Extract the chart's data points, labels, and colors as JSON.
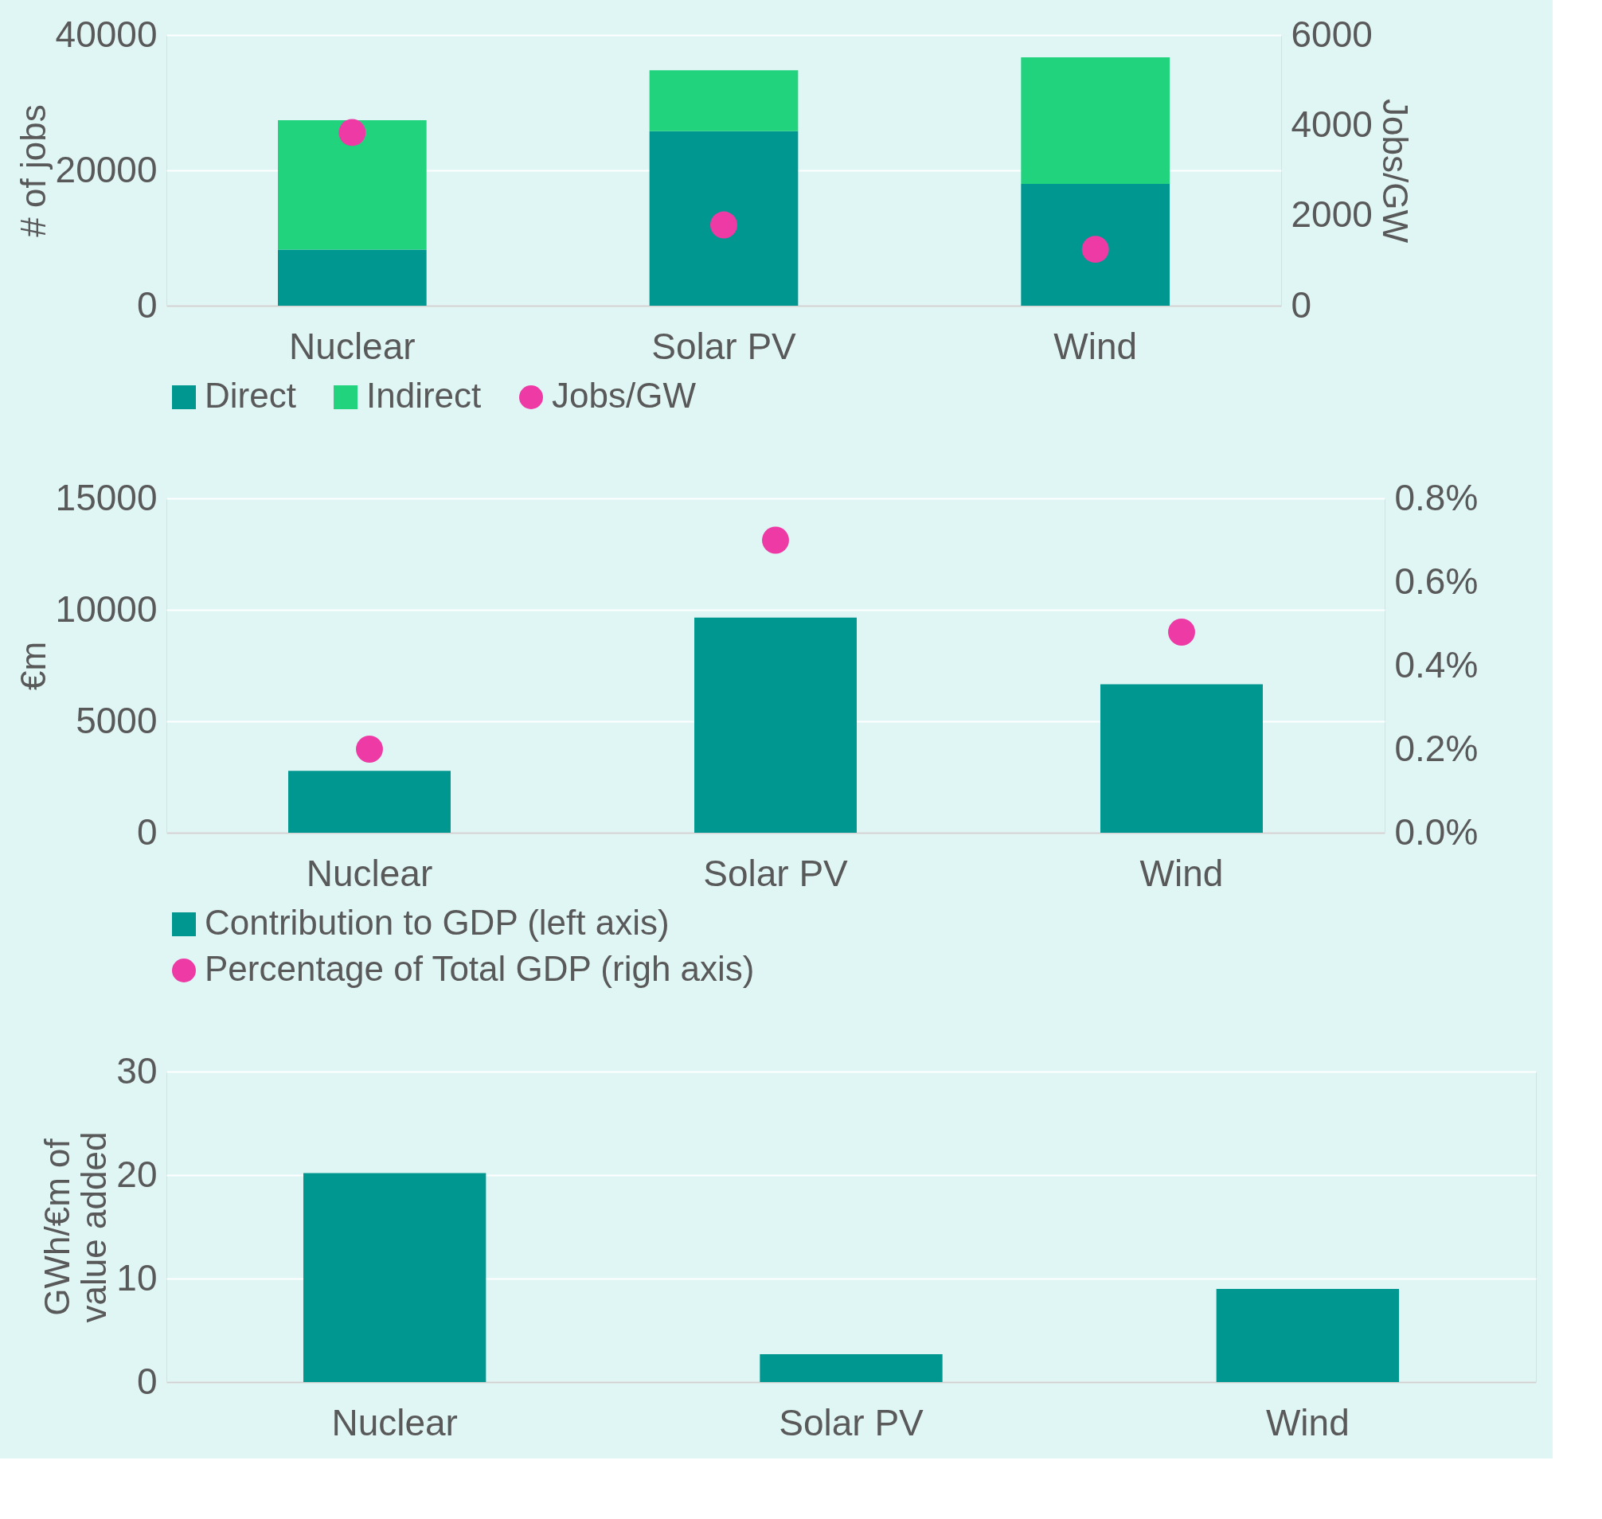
{
  "chart_data": [
    {
      "type": "bar",
      "stacked": true,
      "categories": [
        "Nuclear",
        "Solar PV",
        "Wind"
      ],
      "ylabel": "# of jobs",
      "y2label": "Jobs/GW",
      "ylim": [
        0,
        40000
      ],
      "yticks": [
        0,
        20000,
        40000
      ],
      "y2lim": [
        0,
        6000
      ],
      "y2ticks": [
        0,
        2000,
        4000,
        6000
      ],
      "grid": "y",
      "legend": "bottom",
      "series": [
        {
          "name": "Direct",
          "color": "#009790",
          "values": [
            8300,
            25800,
            18000
          ]
        },
        {
          "name": "Indirect",
          "color": "#22d37e",
          "values": [
            19100,
            9000,
            18700
          ]
        },
        {
          "name": "Jobs/GW",
          "type": "scatter",
          "axis": "y2",
          "color": "#ee3aa5",
          "marker": "circle",
          "values": [
            3840,
            1790,
            1250
          ]
        }
      ]
    },
    {
      "type": "bar",
      "categories": [
        "Nuclear",
        "Solar PV",
        "Wind"
      ],
      "ylabel": "€m",
      "ylim": [
        0,
        15000
      ],
      "yticks": [
        0,
        5000,
        10000,
        15000
      ],
      "y2lim": [
        0,
        0.8
      ],
      "y2ticks": [
        {
          "value": 0,
          "label": "0.0%"
        },
        {
          "value": 0.2,
          "label": "0.2%"
        },
        {
          "value": 0.4,
          "label": "0.4%"
        },
        {
          "value": 0.6,
          "label": "0.6%"
        },
        {
          "value": 0.8,
          "label": "0.8%"
        }
      ],
      "grid": "y",
      "legend": "bottom",
      "series": [
        {
          "name": "Contribution to GDP (left axis)",
          "color": "#009790",
          "values": [
            2780,
            9650,
            6660
          ]
        },
        {
          "name": "Percentage of Total GDP (righ axis)",
          "type": "scatter",
          "axis": "y2",
          "color": "#ee3aa5",
          "marker": "circle",
          "values": [
            0.2,
            0.7,
            0.48
          ]
        }
      ]
    },
    {
      "type": "bar",
      "categories": [
        "Nuclear",
        "Solar PV",
        "Wind"
      ],
      "ylabel": "GWh/€m of\nvalue added",
      "ylim": [
        0,
        30
      ],
      "yticks": [
        0,
        10,
        20,
        30
      ],
      "grid": "y",
      "series": [
        {
          "color": "#009790",
          "values": [
            20.2,
            2.7,
            9.0
          ]
        }
      ]
    }
  ]
}
